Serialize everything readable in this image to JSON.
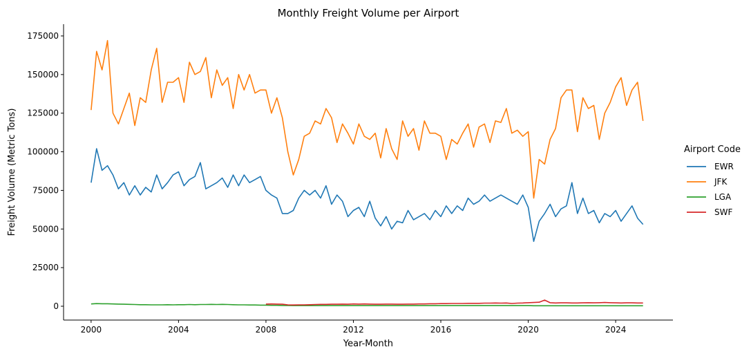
{
  "chart_data": {
    "type": "line",
    "title": "Monthly Freight Volume per Airport",
    "xlabel": "Year-Month",
    "ylabel": "Freight Volume (Metric Tons)",
    "xlim": [
      1998.74,
      2026.62
    ],
    "ylim": [
      -8950,
      182600
    ],
    "x_ticks": [
      "2000",
      "2004",
      "2008",
      "2012",
      "2016",
      "2020",
      "2024"
    ],
    "y_ticks": [
      "0",
      "25000",
      "50000",
      "75000",
      "100000",
      "125000",
      "150000",
      "175000"
    ],
    "grid": false,
    "legend": {
      "title": "Airport Code",
      "placement": "right"
    },
    "series": [
      {
        "name": "EWR",
        "color": "#1f77b4",
        "start": "2000-01",
        "frequency": "quarterly",
        "values": [
          80000,
          102000,
          88000,
          91000,
          85000,
          76000,
          80000,
          72000,
          78000,
          72000,
          77000,
          74000,
          85000,
          76000,
          80000,
          85000,
          87000,
          78000,
          82000,
          84000,
          93000,
          76000,
          78000,
          80000,
          83000,
          77000,
          85000,
          78000,
          85000,
          80000,
          82000,
          84000,
          75000,
          72000,
          70000,
          60000,
          60000,
          62000,
          70000,
          75000,
          72000,
          75000,
          70000,
          78000,
          66000,
          72000,
          68000,
          58000,
          62000,
          64000,
          58000,
          68000,
          57000,
          52000,
          58000,
          50000,
          55000,
          54000,
          62000,
          56000,
          58000,
          60000,
          56000,
          62000,
          58000,
          65000,
          60000,
          65000,
          62000,
          70000,
          66000,
          68000,
          72000,
          68000,
          70000,
          72000,
          70000,
          68000,
          66000,
          72000,
          64000,
          42000,
          55000,
          60000,
          66000,
          58000,
          63000,
          65000,
          80000,
          60000,
          70000,
          60000,
          62000,
          54000,
          60000,
          58000,
          62000,
          55000,
          60000,
          65000,
          57000,
          53000
        ]
      },
      {
        "name": "JFK",
        "color": "#ff7f0e",
        "start": "2000-01",
        "frequency": "quarterly",
        "values": [
          127000,
          165000,
          153000,
          172000,
          125000,
          118000,
          128000,
          138000,
          117000,
          135000,
          132000,
          153000,
          167000,
          132000,
          145000,
          145000,
          148000,
          132000,
          158000,
          150000,
          152000,
          161000,
          135000,
          153000,
          143000,
          148000,
          128000,
          150000,
          140000,
          150000,
          138000,
          140000,
          140000,
          125000,
          135000,
          122000,
          100000,
          85000,
          95000,
          110000,
          112000,
          120000,
          118000,
          128000,
          122000,
          106000,
          118000,
          112000,
          105000,
          118000,
          110000,
          108000,
          112000,
          96000,
          115000,
          102000,
          95000,
          120000,
          110000,
          115000,
          101000,
          120000,
          112000,
          112000,
          110000,
          95000,
          108000,
          105000,
          112000,
          118000,
          103000,
          116000,
          118000,
          106000,
          120000,
          119000,
          128000,
          112000,
          114000,
          110000,
          113000,
          70000,
          95000,
          92000,
          108000,
          115000,
          135000,
          140000,
          140000,
          113000,
          135000,
          128000,
          130000,
          108000,
          125000,
          132000,
          142000,
          148000,
          130000,
          140000,
          145000,
          120000
        ]
      },
      {
        "name": "LGA",
        "color": "#2ca02c",
        "start": "2000-01",
        "frequency": "quarterly",
        "values": [
          1500,
          1700,
          1600,
          1600,
          1500,
          1400,
          1300,
          1200,
          1100,
          1000,
          1000,
          900,
          900,
          900,
          1000,
          900,
          1000,
          1000,
          1100,
          1000,
          1100,
          1100,
          1200,
          1100,
          1200,
          1100,
          1000,
          900,
          900,
          800,
          800,
          700,
          700,
          600,
          600,
          500,
          500,
          400,
          400,
          400,
          400,
          400,
          400,
          400,
          400,
          400,
          400,
          400,
          400,
          400,
          400,
          400,
          400,
          400,
          400,
          400,
          400,
          400,
          400,
          400,
          400,
          400,
          400,
          400,
          400,
          400,
          400,
          400,
          400,
          400,
          400,
          400,
          400,
          400,
          400,
          400,
          400,
          400,
          400,
          400,
          400,
          300,
          300,
          300,
          300,
          300,
          300,
          300,
          300,
          300,
          300,
          300,
          300,
          300,
          300,
          300,
          300,
          300,
          300,
          300,
          300,
          300
        ]
      },
      {
        "name": "SWF",
        "color": "#d62728",
        "start": "2008-01",
        "frequency": "quarterly",
        "values": [
          1400,
          1500,
          1400,
          1300,
          900,
          800,
          900,
          900,
          1000,
          1100,
          1200,
          1200,
          1300,
          1300,
          1400,
          1300,
          1500,
          1400,
          1500,
          1400,
          1300,
          1300,
          1400,
          1400,
          1300,
          1300,
          1400,
          1400,
          1500,
          1500,
          1600,
          1600,
          1700,
          1700,
          1800,
          1800,
          1800,
          1900,
          1900,
          1900,
          2000,
          2000,
          2100,
          2000,
          2100,
          1800,
          2000,
          2100,
          2300,
          2400,
          2600,
          4000,
          2300,
          2100,
          2200,
          2200,
          2100,
          2100,
          2200,
          2300,
          2200,
          2300,
          2400,
          2300,
          2200,
          2100,
          2200,
          2200,
          2100,
          2100
        ]
      }
    ]
  }
}
